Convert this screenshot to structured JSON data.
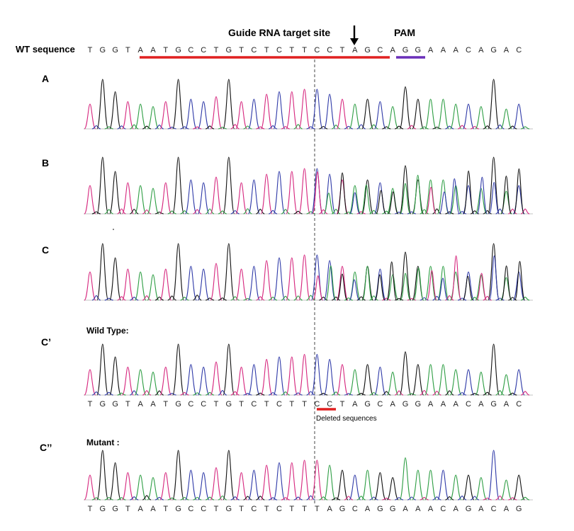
{
  "header": {
    "guide_label": "Guide RNA target site",
    "pam_label": "PAM",
    "wt_label": "WT sequence",
    "wt_sequence": [
      "T",
      "G",
      "G",
      "T",
      "A",
      "A",
      "T",
      "G",
      "C",
      "C",
      "T",
      "G",
      "T",
      "C",
      "T",
      "C",
      "T",
      "T",
      "C",
      "C",
      "T",
      "A",
      "G",
      "C",
      "A",
      "G",
      "G",
      "A",
      "A",
      "A",
      "C",
      "A",
      "G",
      "A",
      "C"
    ]
  },
  "panels": [
    {
      "id": "A",
      "label": "A",
      "subtitle": "",
      "pattern": "clean"
    },
    {
      "id": "B",
      "label": "B",
      "subtitle": "",
      "pattern": "mixed"
    },
    {
      "id": "C",
      "label": "C",
      "subtitle": "",
      "pattern": "mixed"
    },
    {
      "id": "Cp",
      "label": "C’",
      "subtitle": "Wild Type:",
      "pattern": "clean",
      "sequence": [
        "T",
        "G",
        "G",
        "T",
        "A",
        "A",
        "T",
        "G",
        "C",
        "C",
        "T",
        "G",
        "T",
        "C",
        "T",
        "C",
        "T",
        "T",
        "C",
        "C",
        "T",
        "A",
        "G",
        "C",
        "A",
        "G",
        "G",
        "A",
        "A",
        "A",
        "C",
        "A",
        "G",
        "A",
        "C"
      ]
    },
    {
      "id": "Cpp",
      "label": "C’’",
      "subtitle": "Mutant :",
      "pattern": "clean",
      "sequence": [
        "T",
        "G",
        "G",
        "T",
        "A",
        "A",
        "T",
        "G",
        "C",
        "C",
        "T",
        "G",
        "T",
        "C",
        "T",
        "C",
        "T",
        "T",
        "T",
        "A",
        "G",
        "C",
        "A",
        "G",
        "G",
        "A",
        "A",
        "A",
        "C",
        "A",
        "G",
        "A",
        "C",
        "A",
        "G"
      ]
    }
  ],
  "deleted_note": "Deleted sequences",
  "colors": {
    "A": "#2e9e44",
    "C": "#2f3aa8",
    "G": "#111111",
    "T": "#d6267e",
    "guide_bar": "#e02020",
    "pam_bar": "#6a2fb8",
    "deleted_bar": "#e02020"
  }
}
